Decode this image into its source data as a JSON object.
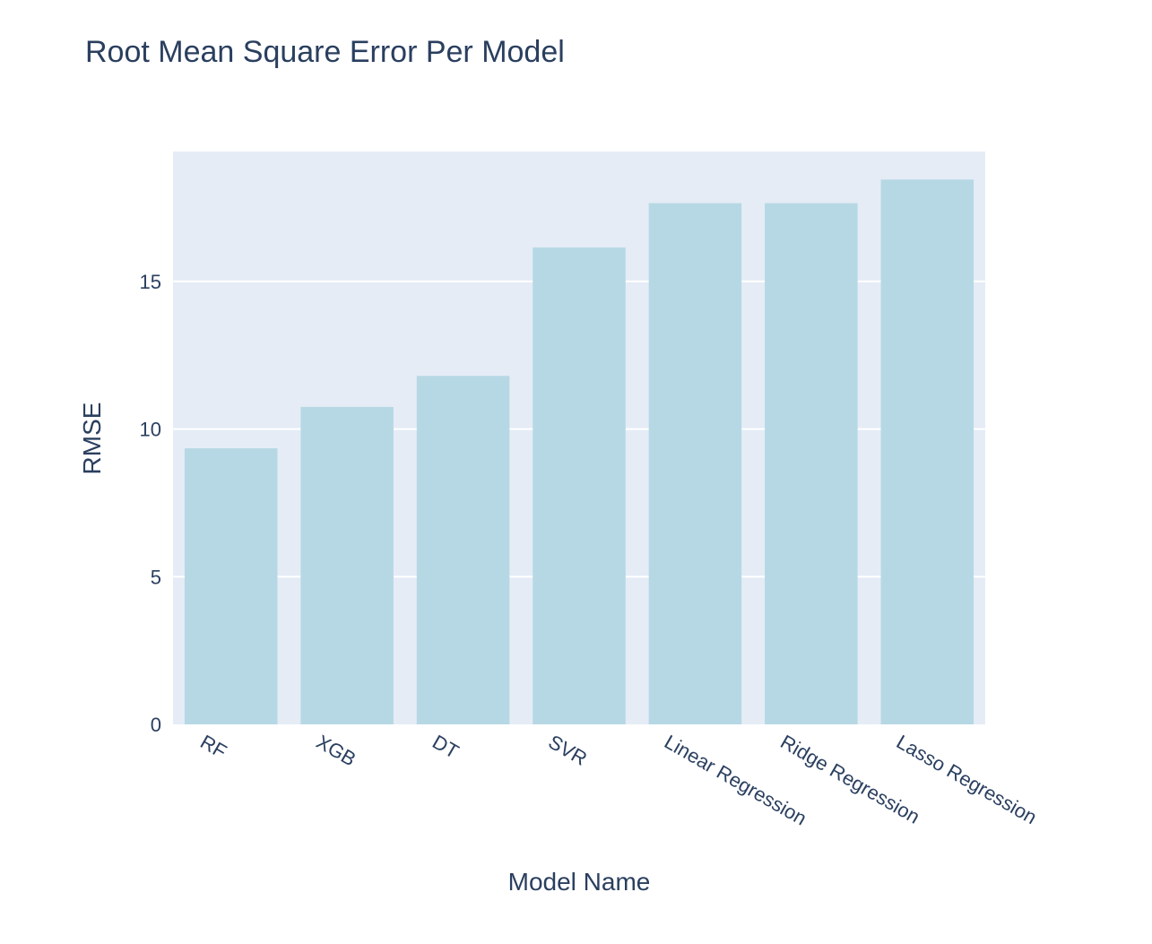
{
  "chart_data": {
    "type": "bar",
    "title": "Root Mean Square Error Per Model",
    "xlabel": "Model Name",
    "ylabel": "RMSE",
    "categories": [
      "RF",
      "XGB",
      "DT",
      "SVR",
      "Linear Regression",
      "Ridge Regression",
      "Lasso Regression"
    ],
    "values": [
      9.35,
      10.75,
      11.8,
      16.15,
      17.65,
      17.65,
      18.45
    ],
    "ylim": [
      0,
      19.4
    ],
    "yticks": [
      0,
      5,
      10,
      15
    ],
    "ytick_labels": [
      "0",
      "5",
      "10",
      "15"
    ],
    "grid": true,
    "legend": "none",
    "colors": {
      "bar": "#b6d8e4",
      "plot_bg": "#e5ecf6",
      "grid": "#ffffff",
      "text": "#2a3f5f"
    }
  }
}
